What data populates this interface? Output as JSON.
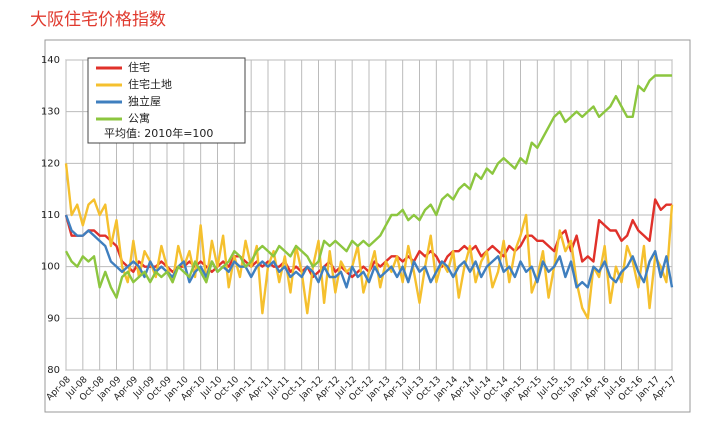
{
  "chart_data": {
    "type": "line",
    "title": "大阪住宅价格指数",
    "annotation": "平均值: 2010年=100",
    "categories": [
      "Apr-08",
      null,
      null,
      "Jul-08",
      null,
      null,
      "Oct-08",
      null,
      null,
      "Jan-09",
      null,
      null,
      "Apr-09",
      null,
      null,
      "Jul-09",
      null,
      null,
      "Oct-09",
      null,
      null,
      "Jan-10",
      null,
      null,
      "Apr-10",
      null,
      null,
      "Jul-10",
      null,
      null,
      "Oct-10",
      null,
      null,
      "Jan-11",
      null,
      null,
      "Apr-11",
      null,
      null,
      "Jul-11",
      null,
      null,
      "Oct-11",
      null,
      null,
      "Jan-12",
      null,
      null,
      "Apr-12",
      null,
      null,
      "Jul-12",
      null,
      null,
      "Oct-12",
      null,
      null,
      "Jan-13",
      null,
      null,
      "Apr-13",
      null,
      null,
      "Jul-13",
      null,
      null,
      "Oct-13",
      null,
      null,
      "Jan-14",
      null,
      null,
      "Apr-14",
      null,
      null,
      "Jul-14",
      null,
      null,
      "Oct-14",
      null,
      null,
      "Jan-15",
      null,
      null,
      "Apr-15",
      null,
      null,
      "Jul-15",
      null,
      null,
      "Oct-15",
      null,
      null,
      "Jan-16",
      null,
      null,
      "Apr-16",
      null,
      null,
      "Jul-16",
      null,
      null,
      "Oct-16",
      null,
      null,
      "Jan-17",
      null,
      null,
      "Apr-17"
    ],
    "series": [
      {
        "name": "住宅",
        "color": "#e0312a",
        "values": [
          110,
          106,
          106,
          106,
          107,
          107,
          106,
          106,
          105,
          104,
          101,
          100,
          99,
          101,
          100,
          100,
          100,
          101,
          100,
          99,
          100,
          100,
          101,
          100,
          101,
          100,
          99,
          100,
          101,
          100,
          102,
          102,
          101,
          100,
          101,
          100,
          101,
          100,
          100,
          101,
          99,
          100,
          99,
          100,
          98,
          99,
          100,
          101,
          99,
          100,
          99,
          98,
          99,
          100,
          99,
          101,
          100,
          101,
          102,
          102,
          101,
          102,
          101,
          103,
          102,
          103,
          102,
          100,
          102,
          103,
          103,
          104,
          103,
          104,
          102,
          103,
          104,
          103,
          102,
          104,
          103,
          104,
          106,
          106,
          105,
          105,
          104,
          103,
          106,
          107,
          103,
          106,
          101,
          102,
          101,
          109,
          108,
          107,
          107,
          105,
          106,
          109,
          107,
          106,
          105,
          113,
          111,
          112,
          112
        ]
      },
      {
        "name": "住宅土地",
        "color": "#f5c02e",
        "values": [
          120,
          110,
          112,
          108,
          112,
          113,
          110,
          112,
          104,
          109,
          100,
          97,
          105,
          98,
          103,
          101,
          98,
          104,
          100,
          97,
          104,
          100,
          103,
          98,
          108,
          97,
          105,
          100,
          106,
          96,
          102,
          98,
          105,
          100,
          104,
          91,
          100,
          103,
          97,
          102,
          95,
          104,
          99,
          91,
          100,
          105,
          93,
          103,
          95,
          101,
          99,
          100,
          104,
          95,
          99,
          103,
          96,
          101,
          99,
          102,
          97,
          104,
          99,
          93,
          100,
          106,
          97,
          101,
          99,
          103,
          94,
          100,
          104,
          97,
          101,
          103,
          96,
          99,
          105,
          97,
          103,
          106,
          110,
          95,
          98,
          103,
          94,
          100,
          107,
          103,
          105,
          97,
          92,
          90,
          100,
          98,
          104,
          93,
          100,
          97,
          104,
          101,
          96,
          104,
          92,
          102,
          100,
          97,
          112
        ]
      },
      {
        "name": "独立屋",
        "color": "#3f7fbf",
        "values": [
          110,
          107,
          106,
          106,
          107,
          106,
          105,
          104,
          101,
          100,
          99,
          100,
          101,
          100,
          98,
          101,
          99,
          100,
          99,
          98,
          100,
          101,
          97,
          99,
          100,
          98,
          101,
          99,
          100,
          99,
          101,
          100,
          100,
          98,
          100,
          101,
          100,
          101,
          99,
          100,
          98,
          99,
          98,
          100,
          99,
          97,
          100,
          98,
          98,
          99,
          96,
          100,
          98,
          99,
          97,
          100,
          98,
          99,
          100,
          98,
          100,
          97,
          101,
          99,
          100,
          97,
          99,
          101,
          100,
          98,
          100,
          101,
          99,
          101,
          98,
          100,
          101,
          102,
          99,
          100,
          98,
          101,
          99,
          100,
          97,
          101,
          99,
          100,
          102,
          98,
          101,
          96,
          97,
          96,
          100,
          99,
          101,
          98,
          97,
          99,
          100,
          102,
          99,
          97,
          101,
          103,
          98,
          102,
          96
        ]
      },
      {
        "name": "公寓",
        "color": "#8cc63f",
        "values": [
          103,
          101,
          100,
          102,
          101,
          102,
          96,
          99,
          96,
          94,
          98,
          99,
          97,
          98,
          99,
          97,
          99,
          98,
          99,
          97,
          100,
          99,
          98,
          101,
          99,
          97,
          101,
          99,
          100,
          101,
          103,
          102,
          100,
          101,
          103,
          104,
          103,
          102,
          104,
          103,
          102,
          104,
          103,
          102,
          100,
          101,
          105,
          104,
          105,
          104,
          103,
          105,
          104,
          105,
          104,
          105,
          106,
          108,
          110,
          110,
          111,
          109,
          110,
          109,
          111,
          112,
          110,
          113,
          114,
          113,
          115,
          116,
          115,
          118,
          117,
          119,
          118,
          120,
          121,
          120,
          119,
          121,
          120,
          124,
          123,
          125,
          127,
          129,
          130,
          128,
          129,
          130,
          129,
          130,
          131,
          129,
          130,
          131,
          133,
          131,
          129,
          129,
          135,
          134,
          136,
          137,
          137,
          137,
          137
        ]
      }
    ],
    "ylim": [
      80,
      140
    ],
    "yticks": [
      80,
      90,
      100,
      110,
      120,
      130,
      140
    ],
    "grid": true,
    "legend": "top-left"
  }
}
